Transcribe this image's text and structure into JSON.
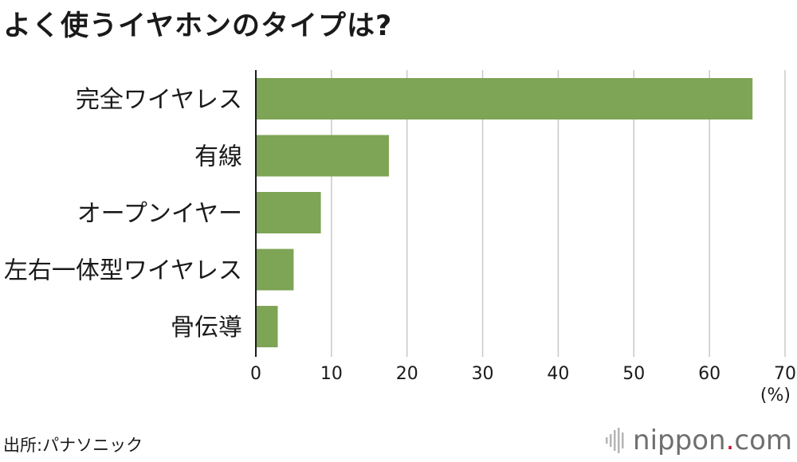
{
  "chart_data": {
    "type": "bar",
    "orientation": "horizontal",
    "title": "よく使うイヤホンのタイプは?",
    "categories": [
      "完全ワイヤレス",
      "有線",
      "オープンイヤー",
      "左右一体型ワイヤレス",
      "骨伝導"
    ],
    "values": [
      65.7,
      17.6,
      8.6,
      5.0,
      2.9
    ],
    "xlim": [
      0,
      70
    ],
    "xticks": [
      "0",
      "10",
      "20",
      "30",
      "40",
      "50",
      "60",
      "70"
    ],
    "xunit": "(%)",
    "grid": true,
    "bar_color": "#7ea455"
  },
  "source": "出所:パナソニック",
  "logo": {
    "name": "nippon",
    "dot": ".",
    "suffix": "com",
    "icon": "nippon-logo-mark-icon"
  }
}
